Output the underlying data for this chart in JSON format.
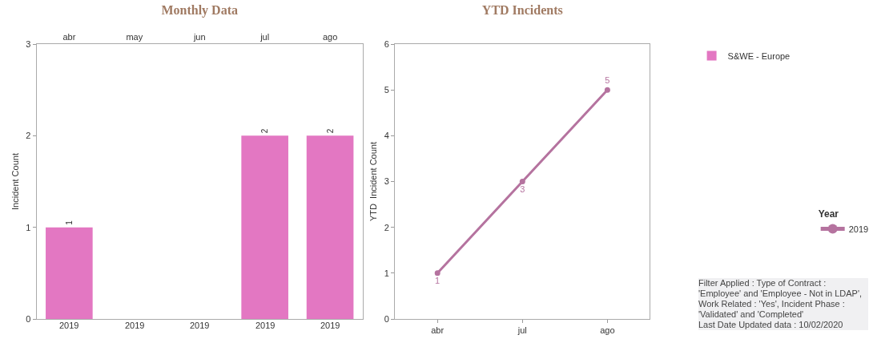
{
  "chart_data": [
    {
      "type": "bar",
      "title": "Monthly Data",
      "ylabel": "Incident Count",
      "categories": [
        "abr",
        "may",
        "jun",
        "jul",
        "ago"
      ],
      "series": [
        {
          "name": "S&WE - Europe",
          "color": "#e377c2",
          "values": [
            1,
            null,
            null,
            2,
            2
          ]
        }
      ],
      "value_labels": [
        "1",
        null,
        null,
        "2",
        "2"
      ],
      "ylim": [
        0,
        3
      ],
      "yticks": [
        0,
        1,
        2,
        3
      ],
      "legend": "top right",
      "annotations": [
        "2019",
        "2019",
        "2019",
        "2019",
        "2019"
      ]
    },
    {
      "type": "line",
      "title": "YTD Incidents",
      "ylabel": "YTD  Incident Count",
      "categories": [
        "abr",
        "jul",
        "ago"
      ],
      "series": [
        {
          "name": "2019",
          "color": "#b5739f",
          "values": [
            1,
            3,
            5
          ]
        }
      ],
      "legend_title": "Year",
      "data_labels": true,
      "marker": "circle",
      "line_style": "solid",
      "ylim": [
        0,
        6
      ],
      "yticks": [
        0,
        1,
        2,
        3,
        4,
        5,
        6
      ],
      "legend": "right",
      "annotations": [
        "Filter Applied :  Type of Contract : 'Employee' and 'Employee - Not in LDAP',  Work Related : 'Yes',  Incident Phase : 'Validated' and 'Completed'",
        "Last Date Updated data :  10/02/2020"
      ]
    }
  ]
}
